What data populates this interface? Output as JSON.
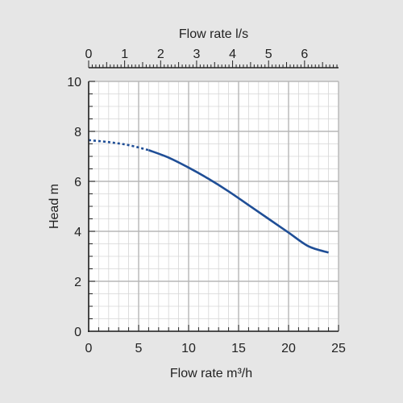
{
  "chart_data": {
    "type": "line",
    "top_xlabel": "Flow rate l/s",
    "xlabel": "Flow rate m³/h",
    "ylabel": "Head m",
    "xlim": [
      0,
      25
    ],
    "ylim": [
      0,
      10
    ],
    "top_xlim_ls": [
      0,
      6.944
    ],
    "x_ticks": [
      "0",
      "5",
      "10",
      "15",
      "20",
      "25"
    ],
    "y_ticks": [
      "0",
      "2",
      "4",
      "6",
      "8",
      "10"
    ],
    "top_ticks": [
      "0",
      "1",
      "2",
      "3",
      "4",
      "5",
      "6"
    ],
    "grid": true,
    "series": [
      {
        "values": [
          {
            "x": 0,
            "y": 7.65
          },
          {
            "x": 2,
            "y": 7.57
          },
          {
            "x": 4,
            "y": 7.45
          },
          {
            "x": 6,
            "y": 7.25
          },
          {
            "x": 8,
            "y": 6.95
          },
          {
            "x": 10,
            "y": 6.55
          },
          {
            "x": 12,
            "y": 6.1
          },
          {
            "x": 14,
            "y": 5.6
          },
          {
            "x": 16,
            "y": 5.05
          },
          {
            "x": 18,
            "y": 4.5
          },
          {
            "x": 20,
            "y": 3.95
          },
          {
            "x": 22,
            "y": 3.4
          },
          {
            "x": 24,
            "y": 3.15
          }
        ],
        "dashed_until_x": 6
      }
    ],
    "colors": {
      "curve": "#1f4e96",
      "major_grid": "#b7b7b7",
      "minor_grid": "#d6d6d6",
      "axis": "#222222",
      "plot_bg": "#ffffff",
      "page_bg": "#e6e6e6"
    }
  }
}
